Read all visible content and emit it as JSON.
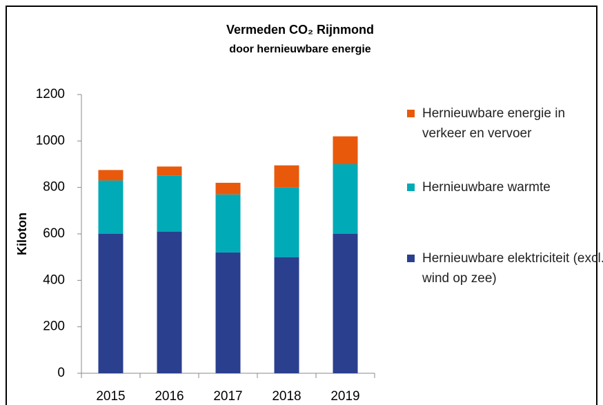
{
  "chart_data": {
    "type": "bar",
    "stacked": true,
    "title": "Vermeden CO₂ Rijnmond",
    "subtitle": "door hernieuwbare energie",
    "y_label": "Kiloton",
    "categories": [
      "2015",
      "2016",
      "2017",
      "2018",
      "2019"
    ],
    "series": [
      {
        "name": "Hernieuwbare elektriciteit (excl. wind op zee)",
        "color": "#2b3f8f",
        "values": [
          600,
          610,
          520,
          500,
          600
        ]
      },
      {
        "name": "Hernieuwbare warmte",
        "color": "#00aab6",
        "values": [
          230,
          240,
          250,
          300,
          300
        ]
      },
      {
        "name": "Hernieuwbare energie in verkeer en vervoer",
        "color": "#e8590c",
        "values": [
          45,
          40,
          50,
          95,
          120
        ]
      }
    ],
    "ylim": [
      0,
      1200
    ],
    "yticks": [
      0,
      200,
      400,
      600,
      800,
      1000,
      1200
    ],
    "grid": false
  }
}
